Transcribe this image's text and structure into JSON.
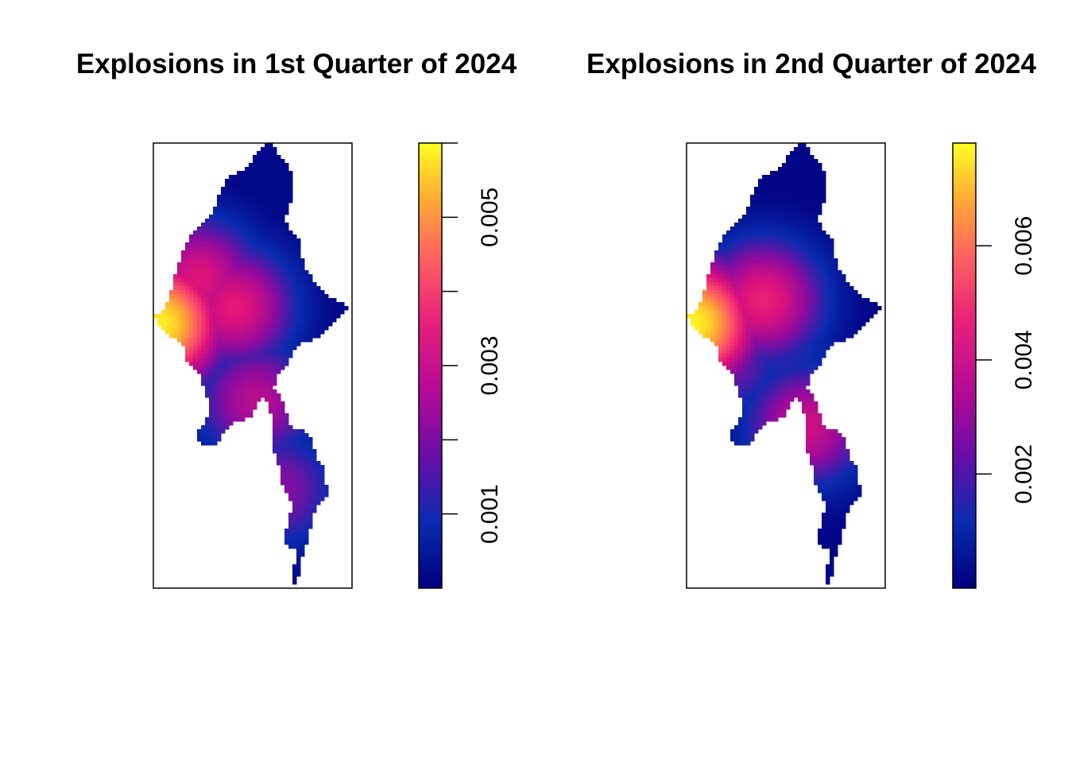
{
  "chart_data": [
    {
      "type": "heatmap",
      "title": "Explosions in 1st Quarter of 2024",
      "xlabel": "",
      "ylabel": "",
      "axes_shown": false,
      "legend": "right",
      "colorbar": {
        "range": [
          0.0,
          0.006
        ],
        "ticks": [
          0.001,
          0.002,
          0.003,
          0.004,
          0.005,
          0.006
        ],
        "tick_labels": [
          "0.001",
          "",
          "0.003",
          "",
          "0.005",
          ""
        ]
      },
      "palette": [
        "#00007f",
        "#0a2bb0",
        "#8e0aa0",
        "#e0127a",
        "#ff5566",
        "#ffaa33",
        "#ffff20"
      ],
      "hotspots": [
        {
          "lon": 92.4,
          "lat": 20.9,
          "value": 0.0058
        },
        {
          "lon": 95.8,
          "lat": 21.6,
          "value": 0.0031
        },
        {
          "lon": 96.8,
          "lat": 17.6,
          "value": 0.0025
        },
        {
          "lon": 94.2,
          "lat": 22.8,
          "value": 0.003
        },
        {
          "lon": 97.8,
          "lat": 13.8,
          "value": 0.002
        }
      ]
    },
    {
      "type": "heatmap",
      "title": "Explosions in 2nd Quarter of 2024",
      "xlabel": "",
      "ylabel": "",
      "axes_shown": false,
      "legend": "right",
      "colorbar": {
        "range": [
          0.0,
          0.0078
        ],
        "ticks": [
          0.002,
          0.004,
          0.006
        ],
        "tick_labels": [
          "0.002",
          "0.004",
          "0.006"
        ]
      },
      "palette": [
        "#00007f",
        "#0a2bb0",
        "#8e0aa0",
        "#e0127a",
        "#ff5566",
        "#ffaa33",
        "#ffff20"
      ],
      "hotspots": [
        {
          "lon": 92.4,
          "lat": 20.9,
          "value": 0.0076
        },
        {
          "lon": 95.6,
          "lat": 21.9,
          "value": 0.0042
        },
        {
          "lon": 97.6,
          "lat": 16.5,
          "value": 0.0036
        },
        {
          "lon": 93.8,
          "lat": 19.5,
          "value": 0.0026
        },
        {
          "lon": 96.6,
          "lat": 19.7,
          "value": 0.0016
        }
      ]
    }
  ]
}
